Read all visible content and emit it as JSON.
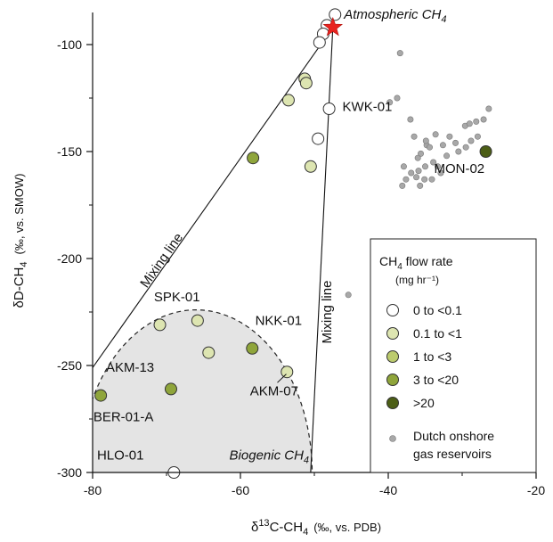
{
  "chart_data": {
    "type": "scatter",
    "xlabel": {
      "base": "δ",
      "sup": "13",
      "main": "C-CH",
      "sub": "4",
      "unit": "(‰, vs. PDB)"
    },
    "ylabel": {
      "main": "δD-CH",
      "sub": "4",
      "unit": "(‰, vs. SMOW)"
    },
    "xlim": [
      -80,
      -20
    ],
    "ylim": [
      -300,
      -85
    ],
    "xticks": [
      -80,
      -60,
      -40,
      -20
    ],
    "yticks": [
      -100,
      -150,
      -200,
      -250,
      -300
    ],
    "grid": false,
    "legend_position": "bottom-right",
    "legend": {
      "title_main": "CH",
      "title_sub": "4",
      "title_rest": " flow rate",
      "unit": "(mg hr⁻¹)",
      "entries": [
        {
          "label": "0 to <0.1",
          "color": "#ffffff"
        },
        {
          "label": "0.1 to <1",
          "color": "#dde5b1"
        },
        {
          "label": "1 to <3",
          "color": "#bccb6e"
        },
        {
          "label": "3 to <20",
          "color": "#8fa53b"
        },
        {
          "label": ">20",
          "color": "#4c5e16"
        }
      ],
      "reservoir_label_1": "Dutch onshore",
      "reservoir_label_2": "gas reservoirs",
      "reservoir_color": "#a8a8a8"
    },
    "series": [
      {
        "class": "0 to <0.1",
        "color": "#ffffff",
        "points": [
          [
            -47.2,
            -86
          ],
          [
            -48.3,
            -91
          ],
          [
            -48.8,
            -95
          ],
          [
            -49.3,
            -99
          ],
          [
            -48.0,
            -130
          ],
          [
            -49.5,
            -144
          ],
          [
            -69,
            -300
          ]
        ]
      },
      {
        "class": "0.1 to <1",
        "color": "#dde5b1",
        "points": [
          [
            -53.5,
            -126
          ],
          [
            -51.3,
            -116
          ],
          [
            -51.1,
            -118
          ],
          [
            -50.5,
            -157
          ],
          [
            -65.8,
            -229
          ],
          [
            -70.9,
            -231
          ],
          [
            -64.3,
            -244
          ],
          [
            -53.7,
            -253
          ]
        ]
      },
      {
        "class": "1 to <3",
        "color": "#bccb6e",
        "points": []
      },
      {
        "class": "3 to <20",
        "color": "#8fa53b",
        "points": [
          [
            -58.3,
            -153
          ],
          [
            -58.4,
            -242
          ],
          [
            -69.4,
            -261
          ],
          [
            -78.9,
            -264
          ]
        ]
      },
      {
        "class": ">20",
        "color": "#4c5e16",
        "points": [
          [
            -26.8,
            -150
          ]
        ]
      }
    ],
    "reservoirs": [
      [
        -38.4,
        -104
      ],
      [
        -39.8,
        -127
      ],
      [
        -38.8,
        -125
      ],
      [
        -36.5,
        -143
      ],
      [
        -34.8,
        -147
      ],
      [
        -35.6,
        -151
      ],
      [
        -34.4,
        -148
      ],
      [
        -36.0,
        -153
      ],
      [
        -35.0,
        -157
      ],
      [
        -37.9,
        -157
      ],
      [
        -36.9,
        -160
      ],
      [
        -36.2,
        -162
      ],
      [
        -35.1,
        -163
      ],
      [
        -38.1,
        -166
      ],
      [
        -37.6,
        -163
      ],
      [
        -35.9,
        -159
      ],
      [
        -34.9,
        -145
      ],
      [
        -33.3,
        -157
      ],
      [
        -32.1,
        -152
      ],
      [
        -33.9,
        -155
      ],
      [
        -31.7,
        -143
      ],
      [
        -30.9,
        -146
      ],
      [
        -29.6,
        -138
      ],
      [
        -29.0,
        -137
      ],
      [
        -28.1,
        -136
      ],
      [
        -27.1,
        -135
      ],
      [
        -26.4,
        -130
      ],
      [
        -28.8,
        -145
      ],
      [
        -27.9,
        -143
      ],
      [
        -29.5,
        -148
      ],
      [
        -30.5,
        -150
      ],
      [
        -32.6,
        -147
      ],
      [
        -33.6,
        -142
      ],
      [
        -37.0,
        -135
      ],
      [
        -45.4,
        -217
      ],
      [
        -34.1,
        -163
      ],
      [
        -35.7,
        -166
      ],
      [
        -32.9,
        -160
      ]
    ],
    "atmospheric_point": [
      -47.5,
      -92
    ],
    "atmospheric_color": "#e8231f",
    "mixing_lines": [
      {
        "from": [
          -80,
          -251
        ],
        "to": [
          -47.5,
          -92
        ]
      },
      {
        "from": [
          -50.5,
          -300
        ],
        "to": [
          -47.5,
          -92
        ]
      }
    ],
    "biogenic_region": {
      "x_center": -66,
      "y_top": -224,
      "x_right": -50.3
    },
    "annotations": {
      "atmospheric_main": "Atmospheric CH",
      "atmospheric_sub": "4",
      "biogenic_main": "Biogenic CH",
      "biogenic_sub": "4",
      "mixing_line_1": "Mixing line",
      "mixing_line_2": "Mixing line",
      "sites": [
        {
          "text": "KWK-01",
          "x": -46.2,
          "y": -131
        },
        {
          "text": "MON-02",
          "x": -33.8,
          "y": -160
        },
        {
          "text": "SPK-01",
          "x": -71.7,
          "y": -220
        },
        {
          "text": "NKK-01",
          "x": -58.0,
          "y": -231
        },
        {
          "text": "AKM-13",
          "x": -78.2,
          "y": -253
        },
        {
          "text": "AKM-07",
          "x": -58.7,
          "y": -264
        },
        {
          "text": "BER-01-A",
          "x": -79.9,
          "y": -276
        },
        {
          "text": "HLO-01",
          "x": -79.4,
          "y": -294
        }
      ]
    }
  }
}
